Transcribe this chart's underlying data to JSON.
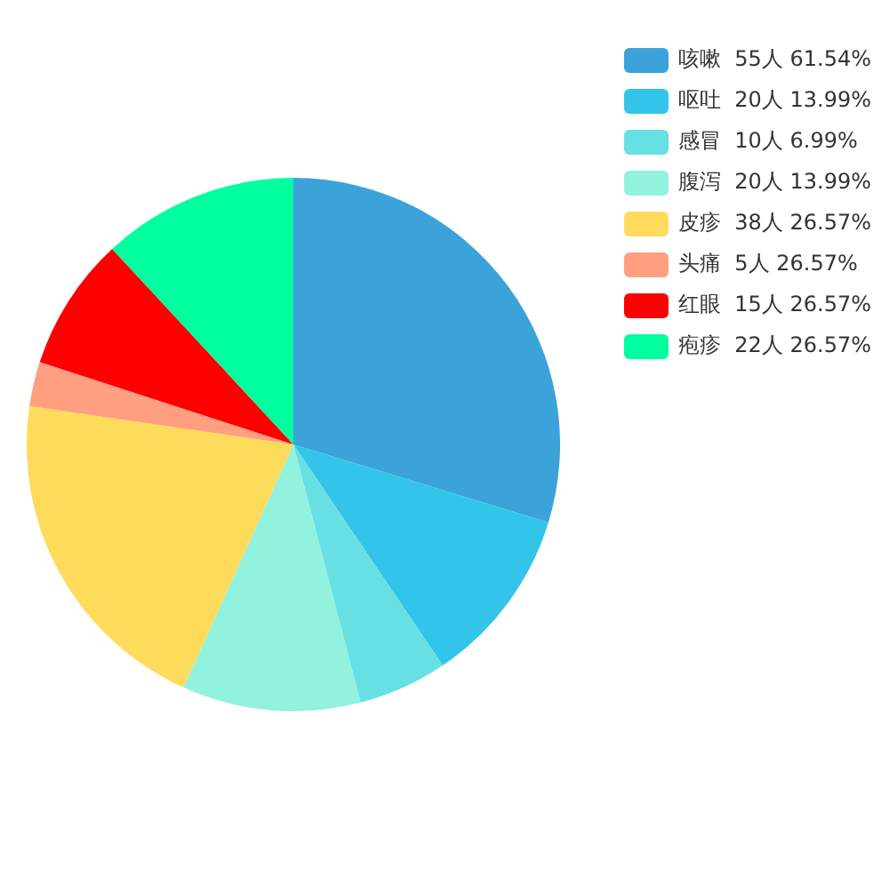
{
  "chart_data": {
    "type": "pie",
    "categories": [
      "咳嗽",
      "呕吐",
      "感冒",
      "腹泻",
      "皮疹",
      "头痛",
      "红眼",
      "疱疹"
    ],
    "values": [
      55,
      20,
      10,
      20,
      38,
      5,
      15,
      22
    ],
    "value_labels": [
      "55人 61.54%",
      "20人 13.99%",
      "10人 6.99%",
      "20人 13.99%",
      "38人 26.57%",
      "5人 26.57%",
      "15人 26.57%",
      "22人 26.57%"
    ],
    "colors": [
      "#3ba3da",
      "#32c5e9",
      "#67e0e3",
      "#91f2de",
      "#ffdb5c",
      "#ff9f7f",
      "#ff0000",
      "#00ff9f"
    ],
    "legend": "top right"
  }
}
